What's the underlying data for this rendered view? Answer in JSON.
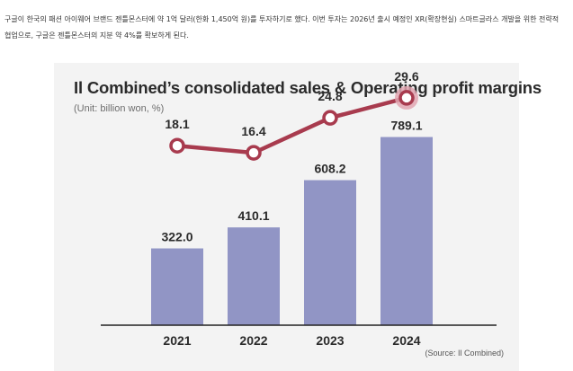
{
  "article": {
    "paragraph": "구글이 한국의 패션 아이웨어 브랜드 젠틀몬스터에 약 1억 달러(한화 1,450억 원)를 투자하기로 했다. 이번 투자는 2026년 출시 예정인 XR(확장현실) 스마트글라스 개발을 위한 전략적 협업으로, 구글은 젠틀몬스터의 지분 약 4%를 확보하게 된다."
  },
  "chart_data": {
    "type": "bar+line",
    "title": "Il Combined’s consolidated sales & Operating profit margins",
    "subtitle": "(Unit: billion won, %)",
    "source": "(Source: Il Combined)",
    "categories": [
      "2021",
      "2022",
      "2023",
      "2024"
    ],
    "series": [
      {
        "name": "Consolidated sales",
        "type": "bar",
        "values": [
          322.0,
          410.1,
          608.2,
          789.1
        ],
        "labels": [
          "322.0",
          "410.1",
          "608.2",
          "789.1"
        ]
      },
      {
        "name": "Operating profit margin",
        "type": "line",
        "values": [
          18.1,
          16.4,
          24.8,
          29.6
        ],
        "labels": [
          "18.1",
          "16.4",
          "24.8",
          "29.6"
        ]
      }
    ],
    "ylim_bar": [
      0,
      1100
    ],
    "ylim_line": [
      -25,
      38
    ],
    "grid": false,
    "legend": "none",
    "colors": {
      "bar": "#9195c5",
      "line": "#a83b4e",
      "marker_fill": "#ffffff",
      "highlight_halo": "#e0a5b0",
      "axis": "#222222",
      "background": "#f3f3f3"
    }
  }
}
